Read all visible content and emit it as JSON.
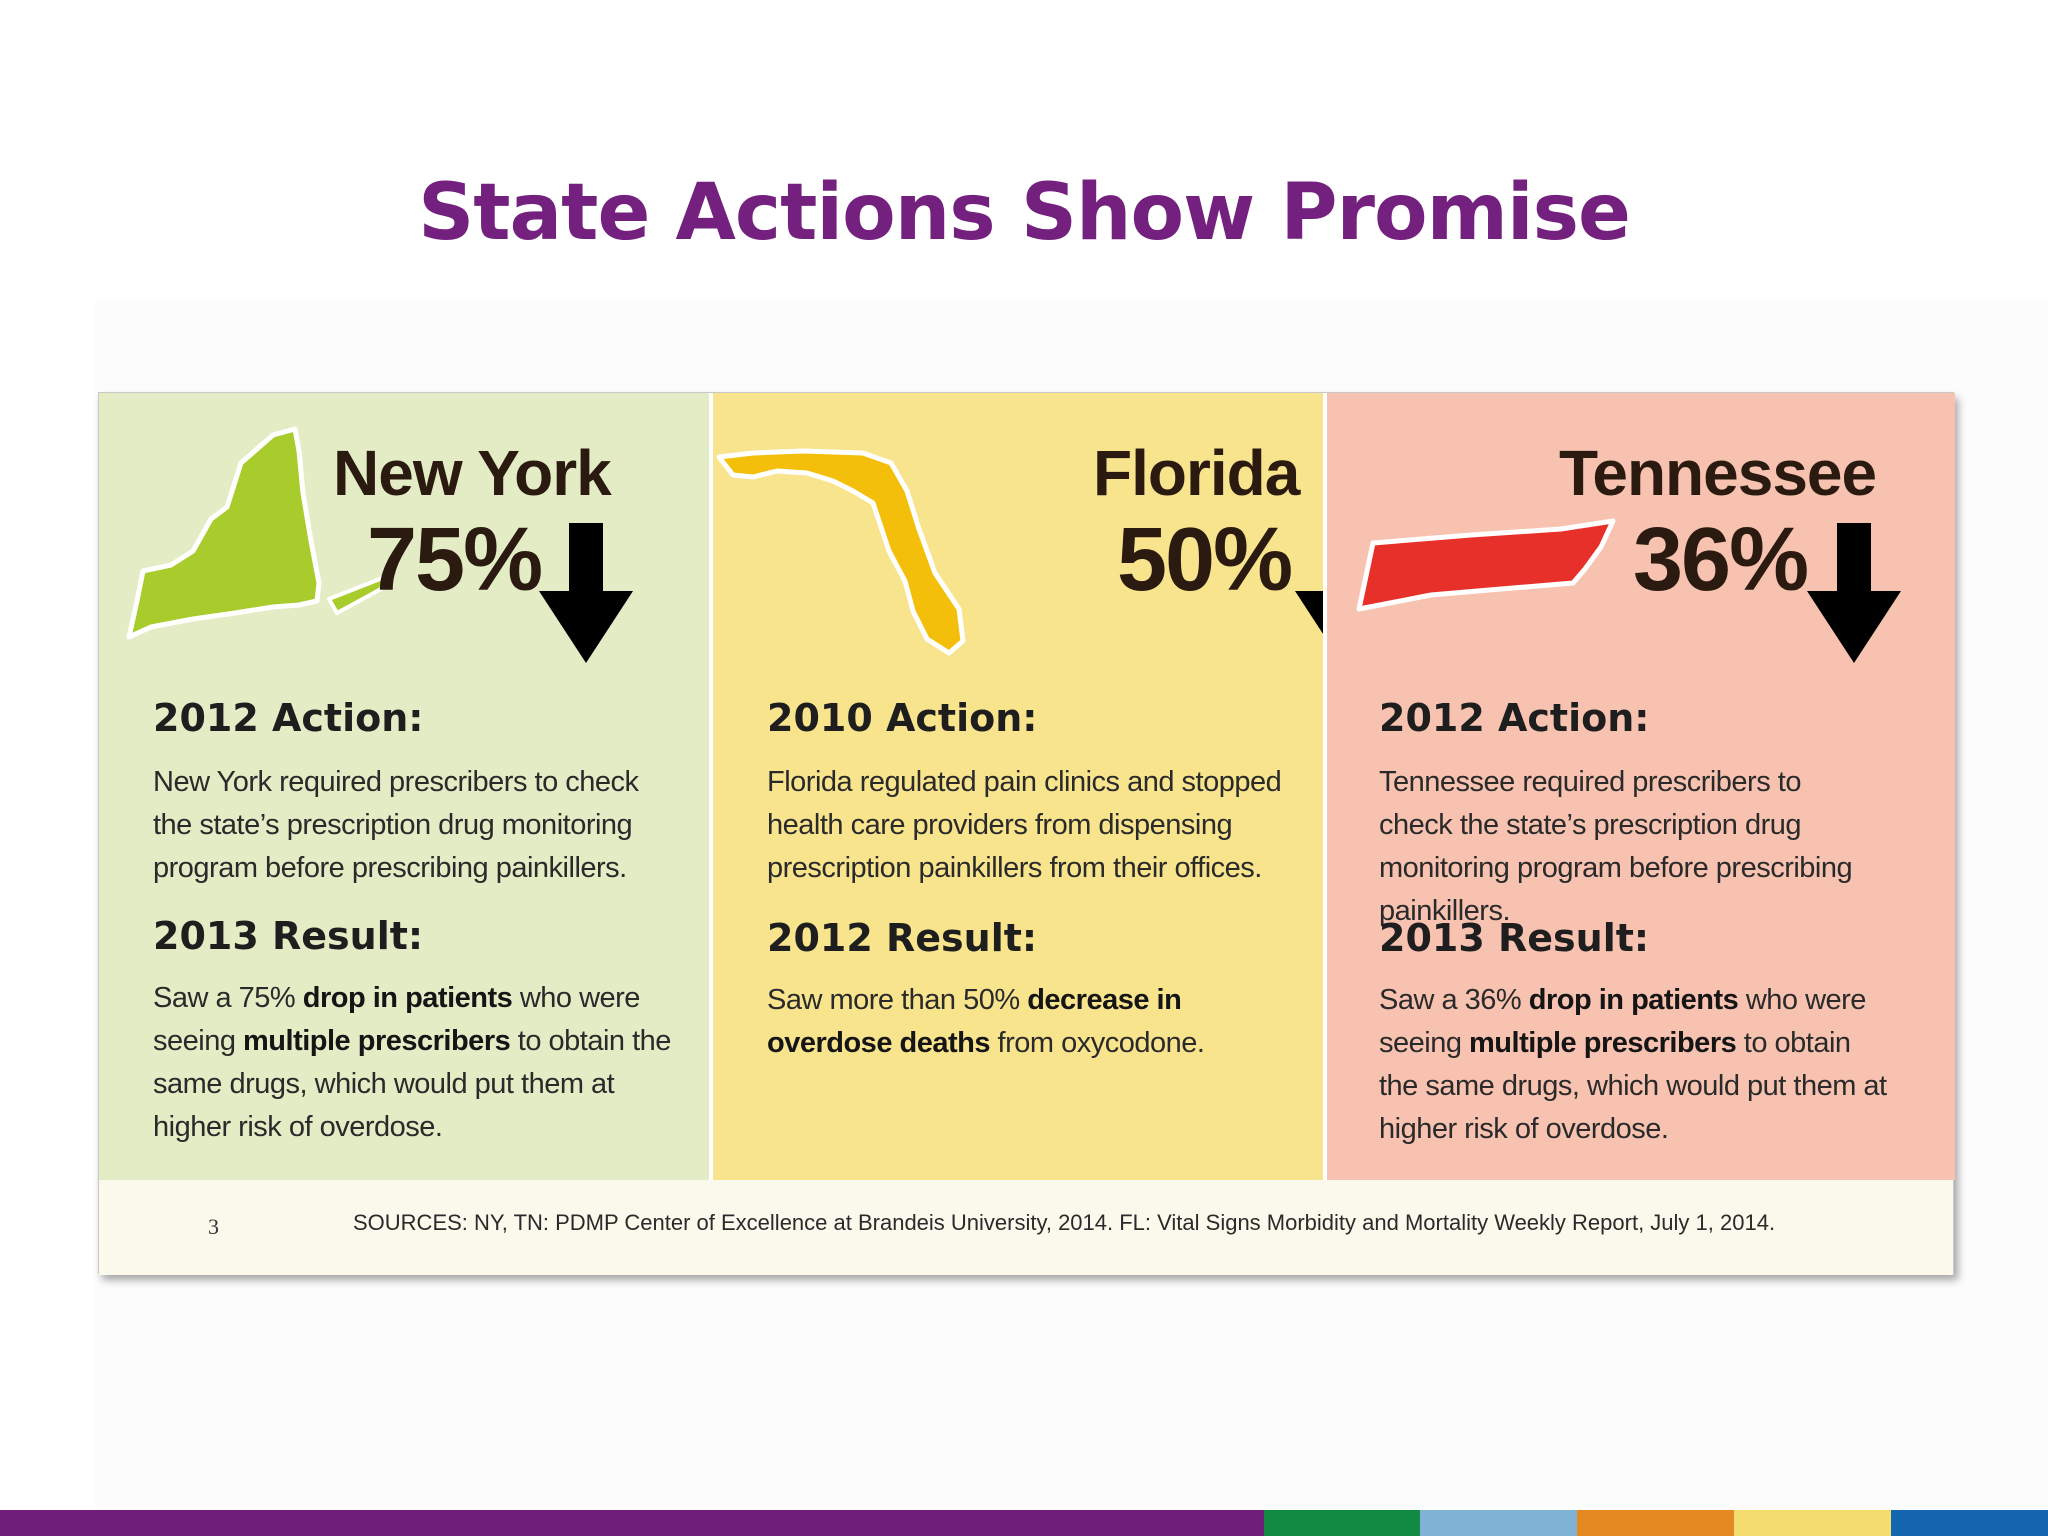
{
  "slide": {
    "title": "State Actions Show Promise"
  },
  "panels": [
    {
      "state": "New York",
      "percent": "75%",
      "map_color": "#a8cc2c",
      "action_heading": "2012 Action:",
      "action_text": "New York required prescribers to check the state’s prescription drug monitoring program before prescribing painkillers.",
      "result_heading": "2013 Result:",
      "result_parts": [
        "Saw a 75% ",
        "drop in patients",
        " who were seeing ",
        "multiple prescribers",
        " to obtain the same drugs, which would put them at higher risk of overdose."
      ]
    },
    {
      "state": "Florida",
      "percent": "50%",
      "map_color": "#f4bf0a",
      "action_heading": "2010 Action:",
      "action_text": "Florida regulated pain clinics and stopped health care providers from dispensing prescription painkillers from their offices.",
      "result_heading": "2012 Result:",
      "result_parts": [
        "Saw more than 50% ",
        "decrease in overdose deaths",
        " from oxycodone."
      ]
    },
    {
      "state": "Tennessee",
      "percent": "36%",
      "map_color": "#e8302a",
      "action_heading": "2012 Action:",
      "action_text": "Tennessee required prescribers to check the state’s prescription drug monitoring program before prescribing painkillers.",
      "result_heading": "2013 Result:",
      "result_parts": [
        "Saw a 36% ",
        "drop in patients",
        " who were seeing ",
        "multiple prescribers",
        " to obtain the same drugs, which would put them at higher risk of overdose."
      ]
    }
  ],
  "footer": {
    "page_number": "3",
    "sources": "SOURCES: NY, TN: PDMP Center of Excellence at Brandeis University, 2014. FL: Vital Signs Morbidity and Mortality Weekly Report, July 1, 2014."
  },
  "colors": {
    "title": "#74207f",
    "bottom_bar": [
      "#6f1f7a",
      "#138a44",
      "#7fb2d3",
      "#e58a22",
      "#f4dd6e",
      "#1566b0"
    ]
  }
}
